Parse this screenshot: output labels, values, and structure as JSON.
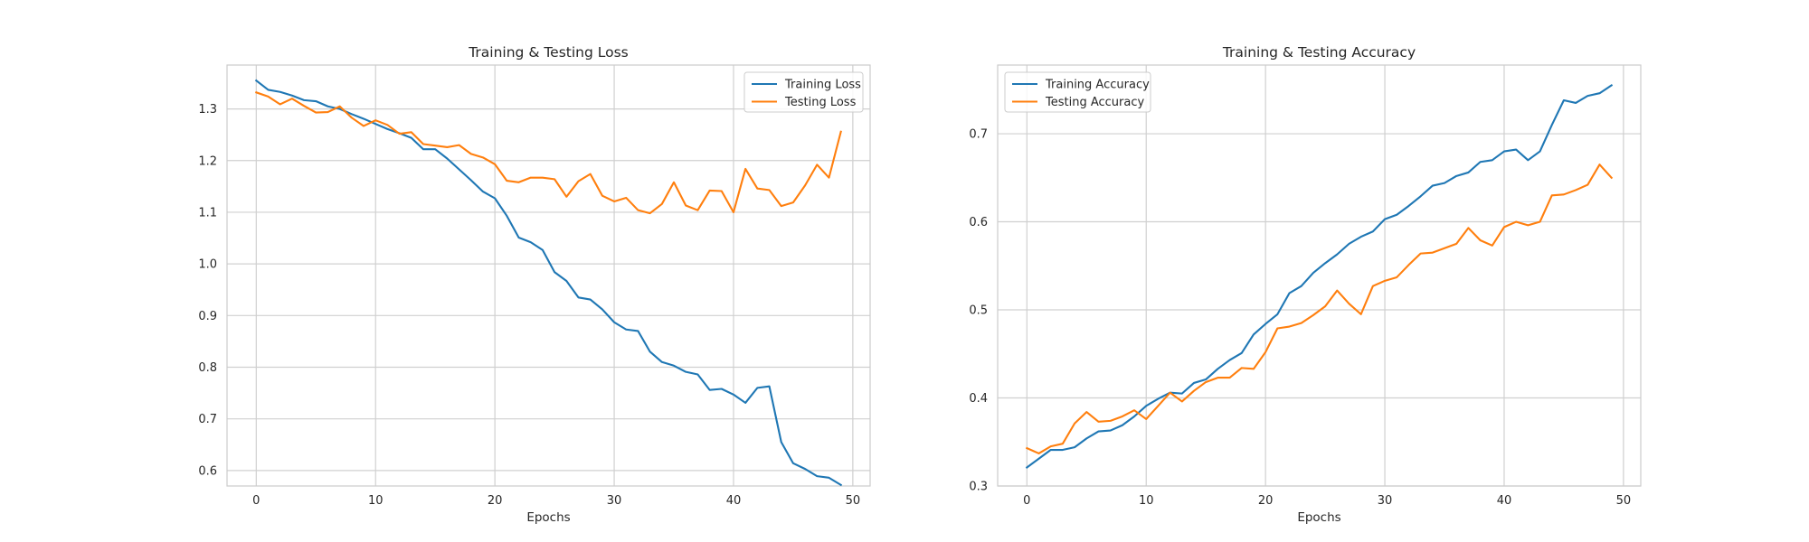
{
  "chart_data": [
    {
      "type": "line",
      "title": "Training & Testing Loss",
      "xlabel": "Epochs",
      "ylabel": "",
      "xlim": [
        -2.45,
        51.45
      ],
      "ylim": [
        0.57,
        1.385
      ],
      "xticks": [
        0,
        10,
        20,
        30,
        40,
        50
      ],
      "yticks": [
        0.6,
        0.7,
        0.8,
        0.9,
        1.0,
        1.1,
        1.2,
        1.3
      ],
      "ytick_labels": [
        "0.6",
        "0.7",
        "0.8",
        "0.9",
        "1.0",
        "1.1",
        "1.2",
        "1.3"
      ],
      "grid": true,
      "legend_position": "upper right",
      "x": [
        0,
        1,
        2,
        3,
        4,
        5,
        6,
        7,
        8,
        9,
        10,
        11,
        12,
        13,
        14,
        15,
        16,
        17,
        18,
        19,
        20,
        21,
        22,
        23,
        24,
        25,
        26,
        27,
        28,
        29,
        30,
        31,
        32,
        33,
        34,
        35,
        36,
        37,
        38,
        39,
        40,
        41,
        42,
        43,
        44,
        45,
        46,
        47,
        48,
        49
      ],
      "series": [
        {
          "name": "Training Loss",
          "color": "#1f77b4",
          "values": [
            1.355,
            1.337,
            1.333,
            1.326,
            1.317,
            1.315,
            1.305,
            1.3,
            1.29,
            1.281,
            1.271,
            1.261,
            1.253,
            1.244,
            1.222,
            1.222,
            1.204,
            1.183,
            1.162,
            1.14,
            1.127,
            1.093,
            1.051,
            1.042,
            1.027,
            0.984,
            0.967,
            0.935,
            0.931,
            0.912,
            0.887,
            0.873,
            0.87,
            0.83,
            0.81,
            0.803,
            0.791,
            0.786,
            0.756,
            0.758,
            0.747,
            0.731,
            0.76,
            0.763,
            0.655,
            0.614,
            0.603,
            0.589,
            0.586,
            0.572
          ]
        },
        {
          "name": "Testing Loss",
          "color": "#ff7f0e",
          "values": [
            1.332,
            1.324,
            1.309,
            1.32,
            1.306,
            1.293,
            1.294,
            1.305,
            1.283,
            1.267,
            1.278,
            1.269,
            1.252,
            1.255,
            1.232,
            1.229,
            1.226,
            1.23,
            1.213,
            1.206,
            1.193,
            1.161,
            1.158,
            1.167,
            1.167,
            1.164,
            1.13,
            1.16,
            1.174,
            1.132,
            1.121,
            1.128,
            1.104,
            1.098,
            1.116,
            1.158,
            1.113,
            1.104,
            1.142,
            1.141,
            1.1,
            1.184,
            1.146,
            1.143,
            1.112,
            1.119,
            1.152,
            1.192,
            1.167,
            1.256
          ]
        }
      ]
    },
    {
      "type": "line",
      "title": "Training & Testing Accuracy",
      "xlabel": "Epochs",
      "ylabel": "",
      "xlim": [
        -2.45,
        51.45
      ],
      "ylim": [
        0.3,
        0.778
      ],
      "xticks": [
        0,
        10,
        20,
        30,
        40,
        50
      ],
      "yticks": [
        0.3,
        0.4,
        0.5,
        0.6,
        0.7
      ],
      "ytick_labels": [
        "0.3",
        "0.4",
        "0.5",
        "0.6",
        "0.7"
      ],
      "grid": true,
      "legend_position": "upper left",
      "x": [
        0,
        1,
        2,
        3,
        4,
        5,
        6,
        7,
        8,
        9,
        10,
        11,
        12,
        13,
        14,
        15,
        16,
        17,
        18,
        19,
        20,
        21,
        22,
        23,
        24,
        25,
        26,
        27,
        28,
        29,
        30,
        31,
        32,
        33,
        34,
        35,
        36,
        37,
        38,
        39,
        40,
        41,
        42,
        43,
        44,
        45,
        46,
        47,
        48,
        49
      ],
      "series": [
        {
          "name": "Training Accuracy",
          "color": "#1f77b4",
          "values": [
            0.321,
            0.331,
            0.341,
            0.341,
            0.344,
            0.354,
            0.362,
            0.363,
            0.369,
            0.379,
            0.391,
            0.399,
            0.406,
            0.405,
            0.417,
            0.421,
            0.433,
            0.443,
            0.451,
            0.472,
            0.484,
            0.495,
            0.519,
            0.527,
            0.542,
            0.553,
            0.563,
            0.575,
            0.583,
            0.589,
            0.603,
            0.608,
            0.618,
            0.629,
            0.641,
            0.644,
            0.652,
            0.656,
            0.668,
            0.67,
            0.68,
            0.682,
            0.67,
            0.68,
            0.71,
            0.738,
            0.735,
            0.743,
            0.746,
            0.755
          ]
        },
        {
          "name": "Testing Accuracy",
          "color": "#ff7f0e",
          "values": [
            0.343,
            0.337,
            0.345,
            0.348,
            0.371,
            0.384,
            0.373,
            0.374,
            0.379,
            0.386,
            0.376,
            0.391,
            0.406,
            0.396,
            0.408,
            0.418,
            0.423,
            0.423,
            0.434,
            0.433,
            0.452,
            0.479,
            0.481,
            0.485,
            0.494,
            0.504,
            0.522,
            0.507,
            0.495,
            0.527,
            0.533,
            0.537,
            0.551,
            0.564,
            0.565,
            0.57,
            0.575,
            0.593,
            0.579,
            0.573,
            0.594,
            0.6,
            0.596,
            0.6,
            0.63,
            0.631,
            0.636,
            0.642,
            0.665,
            0.65
          ]
        }
      ]
    }
  ]
}
